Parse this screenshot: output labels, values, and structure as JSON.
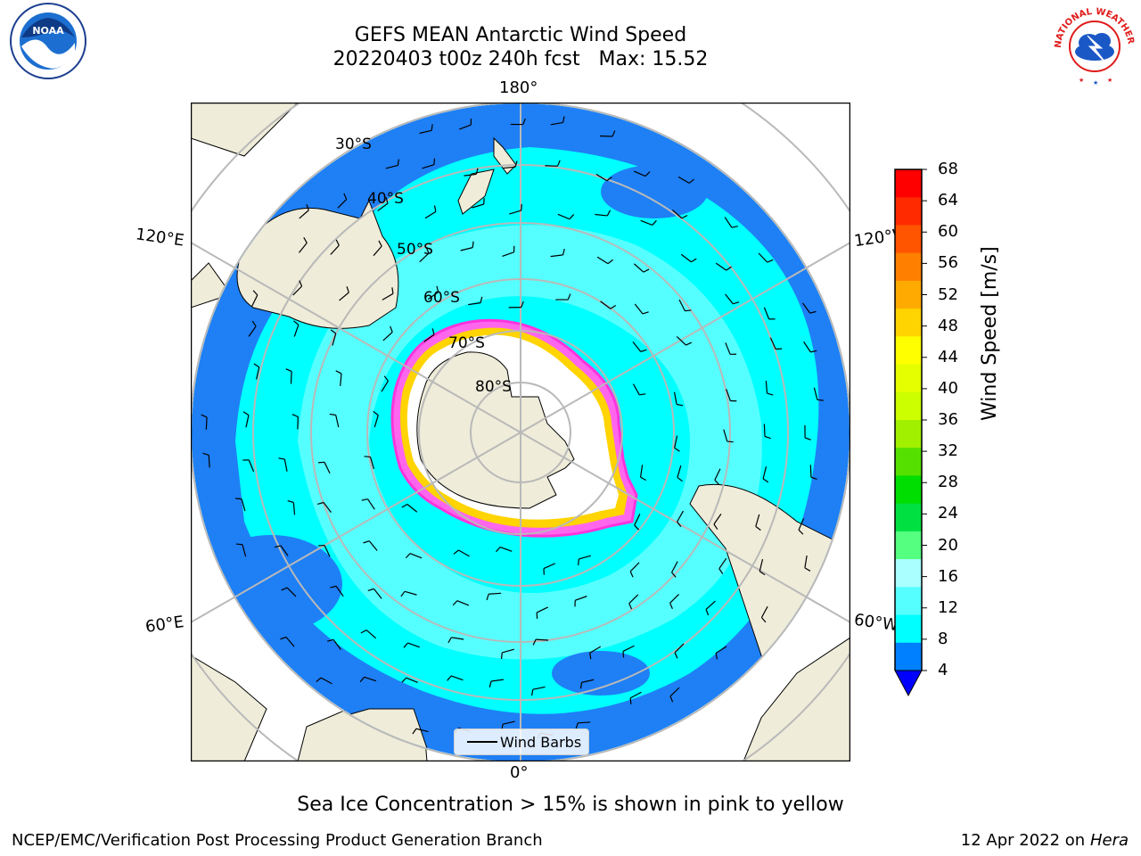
{
  "title": {
    "line1": "GEFS MEAN Antarctic Wind Speed",
    "line2": "20220403 t00z 240h fcst   Max: 15.52"
  },
  "longitude_labels": {
    "top": "180°",
    "bottom": "0°",
    "upper_left": "120°E",
    "upper_right": "120°W",
    "lower_left": "60°E",
    "lower_right": "60°W"
  },
  "latitude_labels": [
    "30°S",
    "40°S",
    "50°S",
    "60°S",
    "70°S",
    "80°S"
  ],
  "colorbar": {
    "label": "Wind Speed [m/s]",
    "ticks": [
      "68",
      "64",
      "60",
      "56",
      "52",
      "48",
      "44",
      "40",
      "36",
      "32",
      "28",
      "24",
      "20",
      "16",
      "12",
      "8",
      "4"
    ],
    "colors": [
      "#ff0000",
      "#ff2a00",
      "#ff5500",
      "#ff8000",
      "#ffaa00",
      "#ffd400",
      "#ffff00",
      "#e6ff00",
      "#ccff00",
      "#a0f000",
      "#55e000",
      "#00dd00",
      "#00e040",
      "#55ff80",
      "#aaffff",
      "#55ffff",
      "#00ffff",
      "#0080ff"
    ],
    "under_color": "#0000ff"
  },
  "legend": {
    "label": "Wind Barbs"
  },
  "caption": "Sea Ice Concentration > 15% is shown in pink to yellow",
  "footer": {
    "left": "NCEP/EMC/Verification Post Processing Product Generation Branch",
    "right_prefix": "12 Apr 2022 on ",
    "right_host": "Hera"
  },
  "logos": {
    "noaa_text": "NOAA",
    "nws_text": "NATIONAL WEATHER SERVICE"
  },
  "palette": {
    "land": "#efecd9",
    "ocean_low": "#1f7ff5",
    "ocean_mid": "#00ffff",
    "ocean_high": "#5fffff",
    "ice_edge": "#ff33dd"
  }
}
